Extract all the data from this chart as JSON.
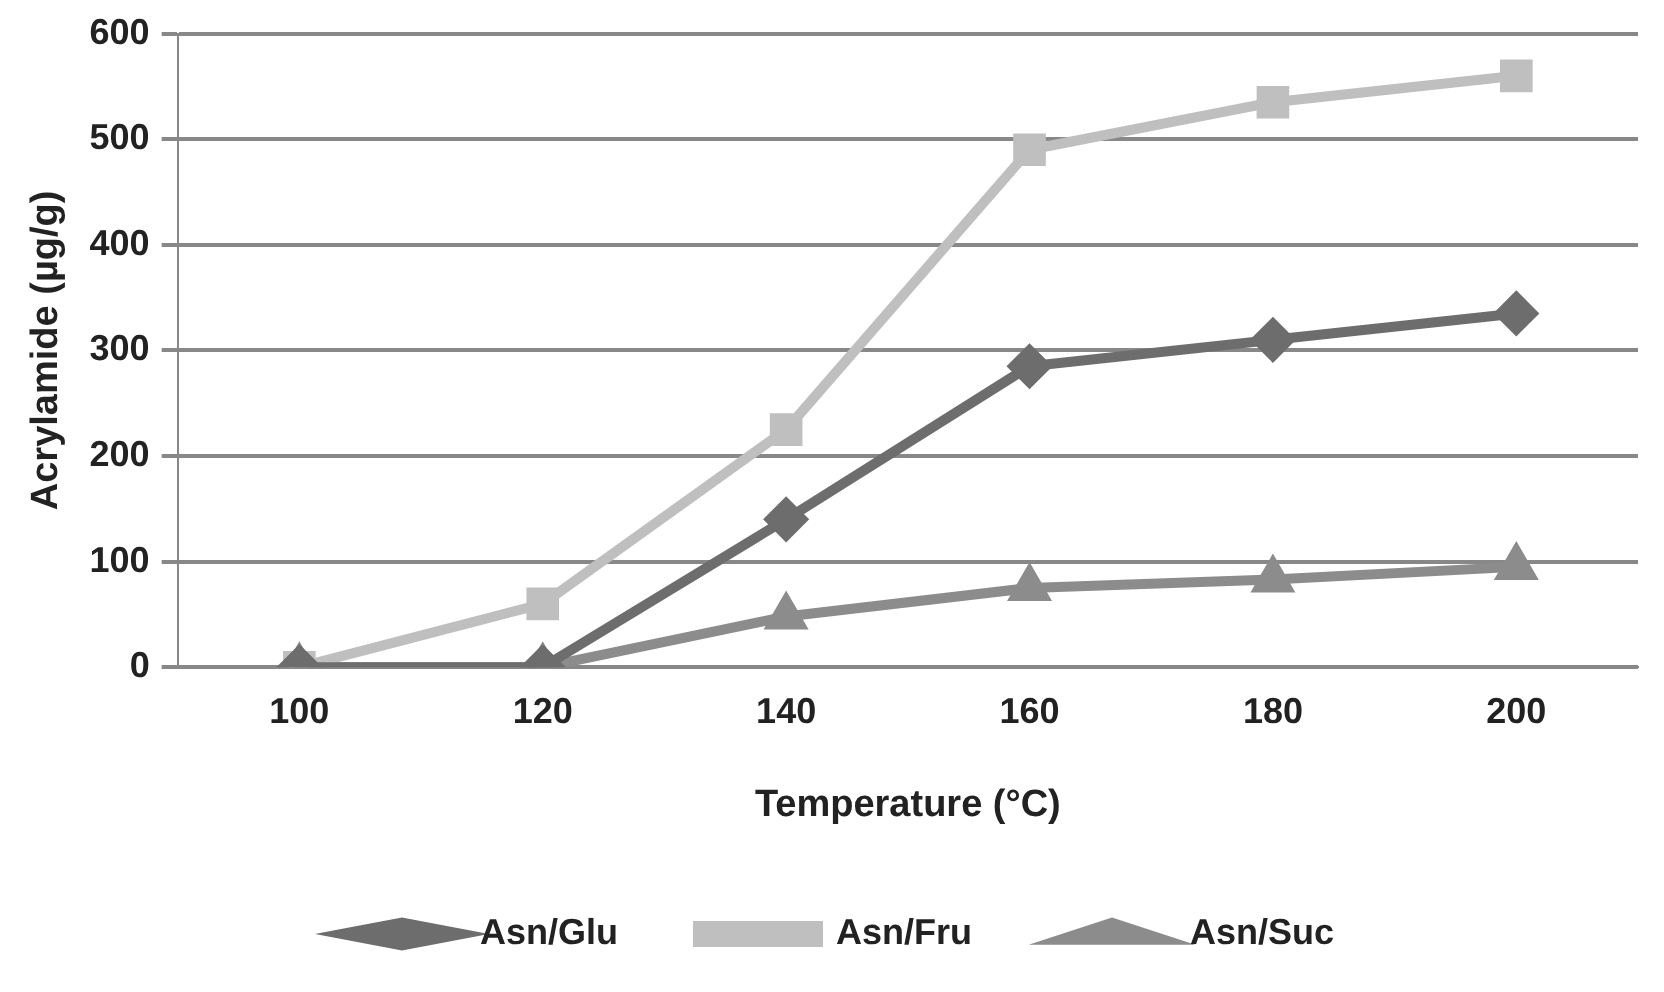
{
  "chart_data": {
    "type": "line",
    "xlabel": "Temperature (°C)",
    "ylabel": "Acrylamide (µg/g)",
    "categories": [
      "100",
      "120",
      "140",
      "160",
      "180",
      "200"
    ],
    "series": [
      {
        "name": "Asn/Glu",
        "color": "#6d6d6d",
        "marker": "diamond",
        "values": [
          0,
          0,
          140,
          285,
          310,
          335
        ]
      },
      {
        "name": "Asn/Fru",
        "color": "#bfbfbf",
        "marker": "square",
        "values": [
          0,
          60,
          225,
          490,
          535,
          560
        ]
      },
      {
        "name": "Asn/Suc",
        "color": "#8c8c8c",
        "marker": "triangle",
        "values": [
          0,
          0,
          48,
          75,
          83,
          95
        ]
      }
    ],
    "ylim": [
      0,
      600
    ],
    "yticks": [
      0,
      100,
      200,
      300,
      400,
      500,
      600
    ],
    "grid": "y",
    "legend": "bottom",
    "line_style": "solid"
  }
}
